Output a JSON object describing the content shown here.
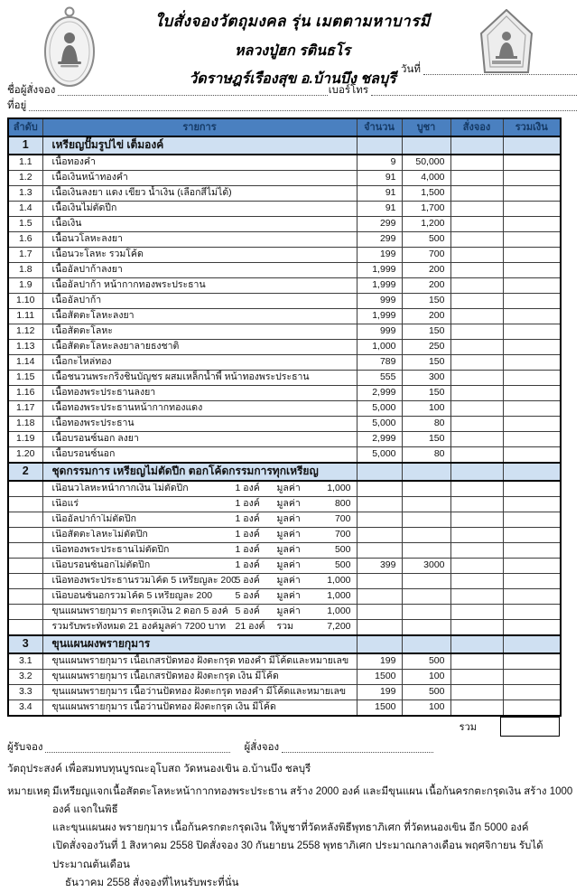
{
  "colors": {
    "header_bg": "#4a80c0",
    "header_text": "#153a66",
    "section_bg": "#cfe0f2",
    "border": "#3c3c3c"
  },
  "icons": {
    "left": "oval-monk-amulet-icon",
    "right": "khun-phaen-amulet-icon"
  },
  "header": {
    "title_line1": "ใบสั่งจองวัตถุมงคล รุ่น เมตตามหาบารมี",
    "title_line2": "หลวงปู่ฮก  รตินธโร",
    "title_line3": "วัดราษฎร์เรืองสุข อ.บ้านบึง ชลบุรี",
    "date_label": "วันที่",
    "name_label": "ชื่อผู้สั่งจอง",
    "phone_label": "เบอร์โทร",
    "address_label": "ที่อยู่"
  },
  "table": {
    "headers": [
      "ลำดับ",
      "รายการ",
      "จำนวน",
      "บูชา",
      "สั่งจอง",
      "รวมเงิน"
    ],
    "total_label": "รวม",
    "sections": [
      {
        "no": "1",
        "title": "เหรียญปั๊มรูปไข่ เต็มองค์",
        "rows": [
          {
            "no": "1.1",
            "item": "เนื้อทองคำ",
            "qty": "9",
            "price": "50,000"
          },
          {
            "no": "1.2",
            "item": "เนื้อเงินหน้าทองคำ",
            "qty": "91",
            "price": "4,000"
          },
          {
            "no": "1.3",
            "item": "เนื้อเงินลงยา  แดง  เขียว  น้ำเงิน (เลือกสีไม่ได้)",
            "qty": "91",
            "price": "1,500"
          },
          {
            "no": "1.4",
            "item": "เนื้อเงินไม่ตัดปีก",
            "qty": "91",
            "price": "1,700"
          },
          {
            "no": "1.5",
            "item": "เนื้อเงิน",
            "qty": "299",
            "price": "1,200"
          },
          {
            "no": "1.6",
            "item": "เนื้อนวโลหะลงยา",
            "qty": "299",
            "price": "500"
          },
          {
            "no": "1.7",
            "item": "เนื้อนวะโลหะ รวมโค้ด",
            "qty": "199",
            "price": "700"
          },
          {
            "no": "1.8",
            "item": "เนื้ออัลปาก้าลงยา",
            "qty": "1,999",
            "price": "200"
          },
          {
            "no": "1.9",
            "item": "เนื้ออัลปาก้า หน้ากากทองพระประธาน",
            "qty": "1,999",
            "price": "200"
          },
          {
            "no": "1.10",
            "item": "เนื้ออัลปาก้า",
            "qty": "999",
            "price": "150"
          },
          {
            "no": "1.11",
            "item": "เนื้อสัตตะโลหะลงยา",
            "qty": "1,999",
            "price": "200"
          },
          {
            "no": "1.12",
            "item": "เนื้อสัตตะโลหะ",
            "qty": "999",
            "price": "150"
          },
          {
            "no": "1.13",
            "item": "เนื้อสัตตะโลหะลงยาลายธงชาติ",
            "qty": "1,000",
            "price": "250"
          },
          {
            "no": "1.14",
            "item": "เนื้อกะไหล่ทอง",
            "qty": "789",
            "price": "150"
          },
          {
            "no": "1.15",
            "item": "เนื้อชนวนพระกริ่งชินบัญชร ผสมเหล็กน้ำพี้ หน้าทองพระประธาน",
            "qty": "555",
            "price": "300"
          },
          {
            "no": "1.16",
            "item": "เนื้อทองพระประธานลงยา",
            "qty": "2,999",
            "price": "150"
          },
          {
            "no": "1.17",
            "item": "เนื้อทองพระประธานหน้ากากทองแดง",
            "qty": "5,000",
            "price": "100"
          },
          {
            "no": "1.18",
            "item": "เนื้อทองพระประธาน",
            "qty": "5,000",
            "price": "80"
          },
          {
            "no": "1.19",
            "item": "เนื้อบรอนซ์นอก ลงยา",
            "qty": "2,999",
            "price": "150"
          },
          {
            "no": "1.20",
            "item": "เนื้อบรอนซ์นอก",
            "qty": "5,000",
            "price": "80"
          }
        ]
      },
      {
        "no": "2",
        "title": "ชุดกรรมการ เหรียญไม่ตัดปีก ตอกโค้ดกรรมการทุกเหรียญ",
        "rows": [
          {
            "no": "",
            "item": "เนื้อนวโลหะหน้ากากเงิน ไม่ตัดปีก",
            "unit": "1 องค์",
            "vlabel": "มูลค่า",
            "value": "1,000",
            "qty": "",
            "price": ""
          },
          {
            "no": "",
            "item": "เนื้อแร่",
            "unit": "1 องค์",
            "vlabel": "มูลค่า",
            "value": "800",
            "qty": "",
            "price": ""
          },
          {
            "no": "",
            "item": "เนื้ออัลปาก้าไม่ตัดปีก",
            "unit": "1 องค์",
            "vlabel": "มูลค่า",
            "value": "700",
            "qty": "",
            "price": ""
          },
          {
            "no": "",
            "item": "เนื้อสัตตะโลหะไม่ตัดปีก",
            "unit": "1 องค์",
            "vlabel": "มูลค่า",
            "value": "700",
            "qty": "",
            "price": ""
          },
          {
            "no": "",
            "item": "เนื้อทองพระประธานไม่ตัดปีก",
            "unit": "1 องค์",
            "vlabel": "มูลค่า",
            "value": "500",
            "qty": "",
            "price": ""
          },
          {
            "no": "",
            "item": "เนื้อบรอนซ์นอกไม่ตัดปีก",
            "unit": "1 องค์",
            "vlabel": "มูลค่า",
            "value": "500",
            "qty": "399",
            "price": "3000"
          },
          {
            "no": "",
            "item": "เนื้อทองพระประธานรวมโค้ด  5 เหรียญละ 200",
            "unit": "5 องค์",
            "vlabel": "มูลค่า",
            "value": "1,000",
            "qty": "",
            "price": ""
          },
          {
            "no": "",
            "item": "เนื้อบอนซ์นอกรวมโค้ด       5 เหรียญละ 200",
            "unit": "5 องค์",
            "vlabel": "มูลค่า",
            "value": "1,000",
            "qty": "",
            "price": ""
          },
          {
            "no": "",
            "item": "ขุนแผนพรายกุมาร ตะกรุดเงิน 2 ดอก 5 องค์",
            "unit": "5 องค์",
            "vlabel": "มูลค่า",
            "value": "1,000",
            "qty": "",
            "price": ""
          },
          {
            "no": "",
            "item": "รวมรับพระทั้งหมด 21 องค์มูลค่า 7200 บาท",
            "unit": "21 องค์",
            "vlabel": "รวม",
            "value": "7,200",
            "qty": "",
            "price": ""
          }
        ]
      },
      {
        "no": "3",
        "title": "ขุนแผนผงพรายกุมาร",
        "rows": [
          {
            "no": "3.1",
            "item": "ขุนแผนพรายกุมาร เนื้อเกสรปัดทอง ฝังตะกรุด ทองคำ มีโค้ดและหมายเลข",
            "qty": "199",
            "price": "500"
          },
          {
            "no": "3.2",
            "item": "ขุนแผนพรายกุมาร เนื้อเกสรปัดทอง ฝังตะกรุด เงิน มีโค้ด",
            "qty": "1500",
            "price": "100"
          },
          {
            "no": "3.3",
            "item": "ขุนแผนพรายกุมาร เนื้อว่านปัดทอง  ฝังตะกรุด ทองคำ มีโค้ดและหมายเลข",
            "qty": "199",
            "price": "500"
          },
          {
            "no": "3.4",
            "item": "ขุนแผนพรายกุมาร เนื้อว่านปัดทอง  ฝังตะกรุด เงิน มีโค้ด",
            "qty": "1500",
            "price": "100"
          }
        ]
      }
    ]
  },
  "footer": {
    "receiver_label": "ผู้รับจอง",
    "orderer_label": "ผู้สั่งจอง",
    "purpose": "วัตถุประสงค์ เพื่อสมทบทุนบูรณะอุโบสถ วัดหนองเขิน อ.บ้านบึง ชลบุรี",
    "note_label": "หมายเหตุ",
    "note_line1": "มีเหรียญแจกเนื้อสัตตะโลหะหน้ากากทองพระประธาน สร้าง 2000 องค์ และมีขุนแผน เนื้อก้นครกตะกรุดเงิน สร้าง 1000 องค์ แจกในพิธี",
    "note_line2": "และขุนแผนผง พรายกุมาร เนื้อก้นครกตะกรุดเงิน ให้บูชาที่วัดหลังพิธีพุทธาภิเศก ที่วัดหนองเขิน อีก 5000 องค์",
    "note_line3": "เปิดสั่งจองวันที่ 1 สิงหาคม 2558 ปิดสั่งจอง 30 กันยายน 2558 พุทธาภิเศก ประมาณกลางเดือน พฤศจิกายน รับได้ประมาณต้นเดือน",
    "note_line4": "ธันวาคม 2558  สั่งจองที่ไหนรับพระที่นั่น"
  }
}
